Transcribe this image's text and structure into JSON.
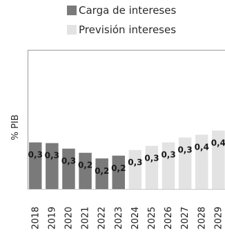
{
  "legend": {
    "items": [
      {
        "label": "Carga de intereses",
        "color": "#7a7a7a"
      },
      {
        "label": "Previsión intereses",
        "color": "#e3e3e3"
      }
    ]
  },
  "chart_data": {
    "type": "bar",
    "categories": [
      "2018",
      "2019",
      "2020",
      "2021",
      "2022",
      "2023",
      "2024",
      "2025",
      "2026",
      "2027",
      "2028",
      "2029"
    ],
    "series": [
      {
        "name": "Carga de intereses",
        "color": "#7a7a7a",
        "values": [
          0.3,
          0.3,
          0.3,
          0.2,
          0.2,
          0.2,
          null,
          null,
          null,
          null,
          null,
          null
        ],
        "data_labels": [
          "0,3",
          "0,3",
          "0,3",
          "0,2",
          "0,2",
          "0,2",
          "",
          "",
          "",
          "",
          "",
          ""
        ]
      },
      {
        "name": "Previsión intereses",
        "color": "#e3e3e3",
        "values": [
          null,
          null,
          null,
          null,
          null,
          null,
          0.3,
          0.3,
          0.3,
          0.3,
          0.4,
          0.4
        ],
        "data_labels": [
          "",
          "",
          "",
          "",
          "",
          "",
          "0,3",
          "0,3",
          "0,3",
          "0,3",
          "0,4",
          "0,4"
        ]
      }
    ],
    "plot_heights_estimate": [
      0.335,
      0.33,
      0.29,
      0.26,
      0.22,
      0.24,
      0.28,
      0.31,
      0.335,
      0.37,
      0.39,
      0.42
    ],
    "ylabel": "% PIB",
    "xlabel": "",
    "ylim": [
      0,
      1.2
    ],
    "grid": false,
    "legend_position": "top"
  }
}
